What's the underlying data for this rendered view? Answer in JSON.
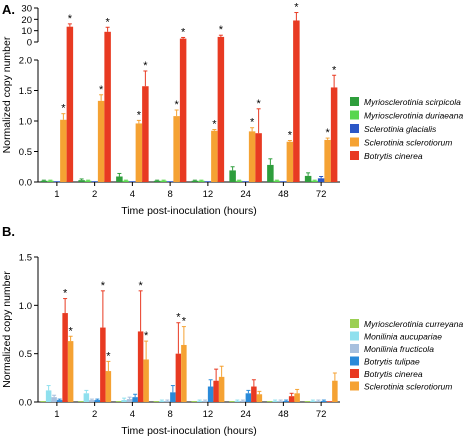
{
  "chart_data": [
    {
      "type": "bar",
      "panel_label": "A.",
      "xlabel": "Time post-inoculation (hours)",
      "ylabel": "Normalized copy number",
      "categories": [
        "1",
        "2",
        "4",
        "8",
        "12",
        "24",
        "48",
        "72"
      ],
      "axis_break": {
        "lower_ylim": [
          0,
          2.0
        ],
        "lower_ticks": [
          "0.0",
          "0.5",
          "1.0",
          "1.5",
          "2.0"
        ],
        "upper_ylim": [
          0,
          30
        ],
        "upper_ticks": [
          "0",
          "10",
          "20",
          "30"
        ]
      },
      "significance_marker": "*",
      "legend_position": "right",
      "series": [
        {
          "name": "Myriosclerotinia scirpicola",
          "color": "#2e9e3c",
          "values": [
            0.02,
            0.03,
            0.09,
            0.02,
            0.02,
            0.19,
            0.28,
            0.1
          ],
          "errors": [
            0.01,
            0.02,
            0.05,
            0.01,
            0.01,
            0.06,
            0.1,
            0.05
          ],
          "sig": [
            false,
            false,
            false,
            false,
            false,
            false,
            false,
            false
          ]
        },
        {
          "name": "Myriosclerotinia duriaeana",
          "color": "#59d64e",
          "values": [
            0.02,
            0.02,
            0.02,
            0.02,
            0.02,
            0.02,
            0.02,
            0.02
          ],
          "errors": [
            0.01,
            0.01,
            0.01,
            0.01,
            0.01,
            0.01,
            0.01,
            0.01
          ],
          "sig": [
            false,
            false,
            false,
            false,
            false,
            false,
            false,
            false
          ]
        },
        {
          "name": "Sclerotinia glacialis",
          "color": "#2b57c7",
          "values": [
            0.0,
            0.0,
            0.0,
            0.0,
            0.0,
            0.0,
            0.0,
            0.06
          ],
          "errors": [
            0.0,
            0.0,
            0.0,
            0.0,
            0.0,
            0.0,
            0.0,
            0.03
          ],
          "sig": [
            false,
            false,
            false,
            false,
            false,
            false,
            false,
            false
          ]
        },
        {
          "name": "Sclerotinia sclerotiorum",
          "color": "#f5a233",
          "values": [
            1.02,
            1.33,
            0.96,
            1.08,
            0.84,
            0.83,
            0.66,
            0.69
          ],
          "errors": [
            0.1,
            0.1,
            0.05,
            0.1,
            0.02,
            0.06,
            0.02,
            0.03
          ],
          "sig": [
            true,
            true,
            true,
            true,
            true,
            true,
            true,
            true
          ]
        },
        {
          "name": "Botrytis cinerea",
          "color": "#e83a22",
          "values": [
            13.5,
            9.0,
            1.57,
            3.0,
            4.5,
            0.8,
            19.0,
            1.55
          ],
          "errors": [
            2.5,
            4.0,
            0.25,
            1.0,
            1.5,
            0.4,
            7.0,
            0.2
          ],
          "sig": [
            true,
            true,
            true,
            true,
            true,
            true,
            true,
            true
          ]
        }
      ]
    },
    {
      "type": "bar",
      "panel_label": "B.",
      "xlabel": "Time post-inoculation (hours)",
      "ylabel": "Normalized copy number",
      "categories": [
        "1",
        "2",
        "4",
        "8",
        "12",
        "24",
        "48",
        "72"
      ],
      "ylim": [
        0,
        1.5
      ],
      "yticks": [
        "0.0",
        "0.5",
        "1.0",
        "1.5"
      ],
      "significance_marker": "*",
      "legend_position": "right",
      "series": [
        {
          "name": "Myriosclerotinia curreyana",
          "color": "#9bcf53",
          "values": [
            0.01,
            0.01,
            0.01,
            0.01,
            0.01,
            0.01,
            0.01,
            0.01
          ],
          "errors": [
            0.0,
            0.0,
            0.0,
            0.0,
            0.0,
            0.0,
            0.0,
            0.0
          ],
          "sig": [
            false,
            false,
            false,
            false,
            false,
            false,
            false,
            false
          ]
        },
        {
          "name": "Monilinia aucupariae",
          "color": "#8fe0ee",
          "values": [
            0.12,
            0.09,
            0.02,
            0.01,
            0.01,
            0.01,
            0.01,
            0.01
          ],
          "errors": [
            0.05,
            0.03,
            0.02,
            0.01,
            0.01,
            0.01,
            0.01,
            0.01
          ],
          "sig": [
            false,
            false,
            false,
            false,
            false,
            false,
            false,
            false
          ]
        },
        {
          "name": "Monilinia fructicola",
          "color": "#a7c0de",
          "values": [
            0.05,
            0.02,
            0.03,
            0.01,
            0.01,
            0.01,
            0.01,
            0.01
          ],
          "errors": [
            0.02,
            0.01,
            0.02,
            0.01,
            0.01,
            0.01,
            0.01,
            0.01
          ],
          "sig": [
            false,
            false,
            false,
            false,
            false,
            false,
            false,
            false
          ]
        },
        {
          "name": "Botrytis tulipae",
          "color": "#2a8ad9",
          "values": [
            0.02,
            0.02,
            0.05,
            0.1,
            0.16,
            0.09,
            0.01,
            0.01
          ],
          "errors": [
            0.01,
            0.01,
            0.03,
            0.07,
            0.07,
            0.03,
            0.01,
            0.01
          ],
          "sig": [
            false,
            false,
            false,
            false,
            false,
            false,
            false,
            false
          ]
        },
        {
          "name": "Botrytis cinerea",
          "color": "#e83a22",
          "values": [
            0.92,
            0.77,
            0.73,
            0.5,
            0.22,
            0.16,
            0.06,
            0.0
          ],
          "errors": [
            0.15,
            0.38,
            0.42,
            0.32,
            0.12,
            0.07,
            0.03,
            0.0
          ],
          "sig": [
            true,
            true,
            true,
            true,
            false,
            false,
            false,
            false
          ]
        },
        {
          "name": "Sclerotinia sclerotiorum",
          "color": "#f5a233",
          "values": [
            0.63,
            0.32,
            0.44,
            0.59,
            0.26,
            0.08,
            0.09,
            0.22
          ],
          "errors": [
            0.05,
            0.1,
            0.19,
            0.19,
            0.11,
            0.03,
            0.04,
            0.08
          ],
          "sig": [
            true,
            true,
            true,
            true,
            false,
            false,
            false,
            false
          ]
        }
      ]
    }
  ]
}
